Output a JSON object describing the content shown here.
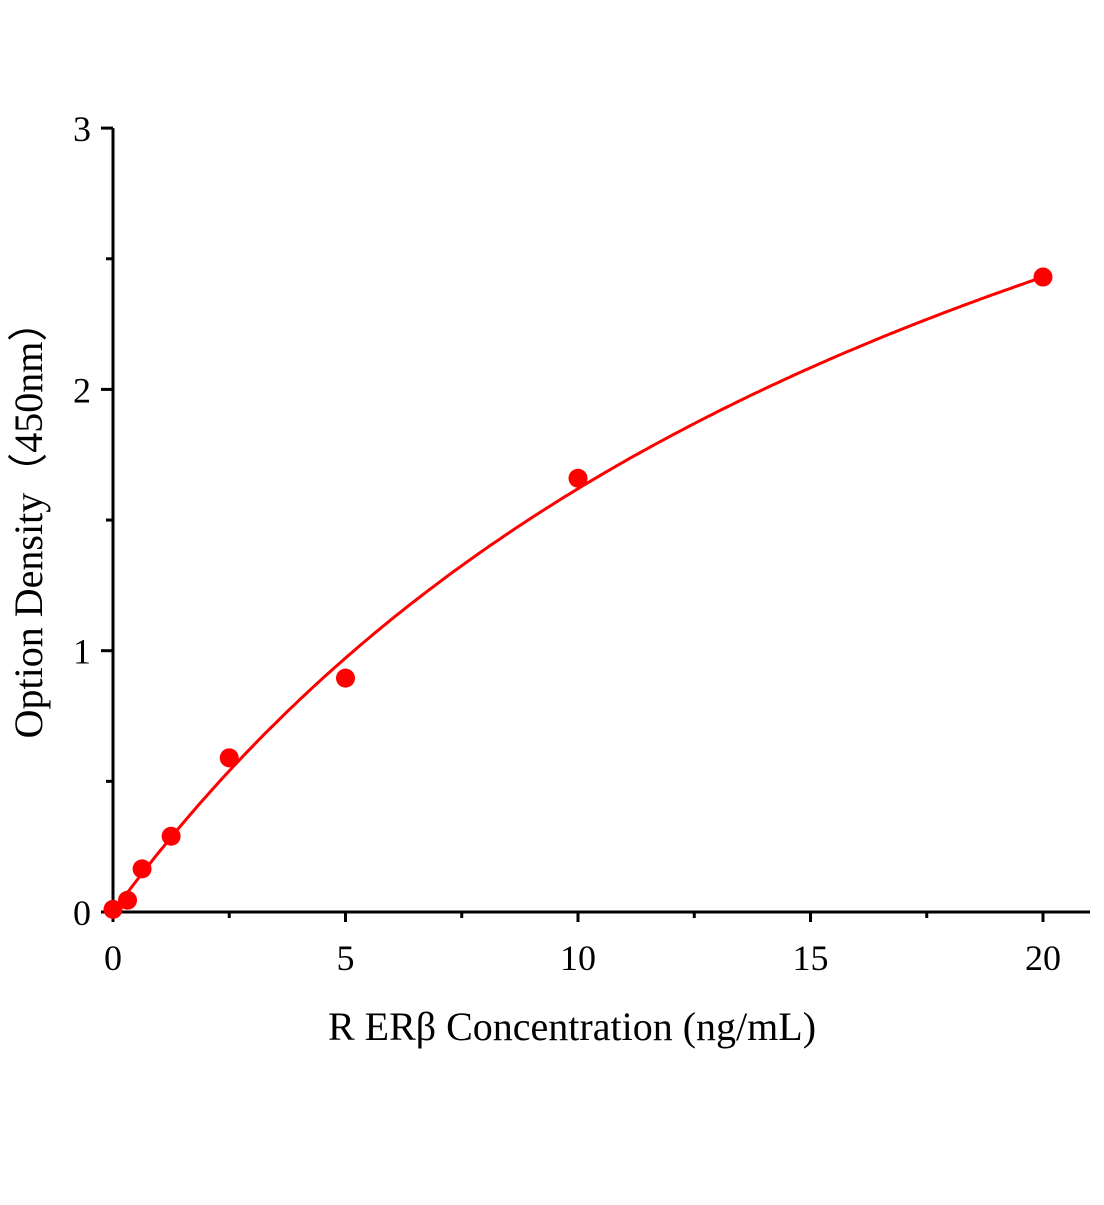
{
  "chart_data": {
    "type": "scatter",
    "title": "",
    "xlabel": "R ERβ Concentration (ng/mL)",
    "ylabel": "Option Density（450nm）",
    "xlim": [
      0,
      21
    ],
    "ylim": [
      0,
      3
    ],
    "x_ticks": [
      "0",
      "5",
      "10",
      "15",
      "20"
    ],
    "y_ticks": [
      "0",
      "1",
      "2",
      "3"
    ],
    "grid": false,
    "legend": "none",
    "series": [
      {
        "x": [
          0,
          0.3125,
          0.625,
          1.25,
          2.5,
          5,
          10,
          20
        ],
        "y": [
          0.01,
          0.045,
          0.165,
          0.29,
          0.59,
          0.895,
          1.66,
          2.43
        ],
        "color": "#ff0000",
        "fit_line": true
      }
    ]
  }
}
